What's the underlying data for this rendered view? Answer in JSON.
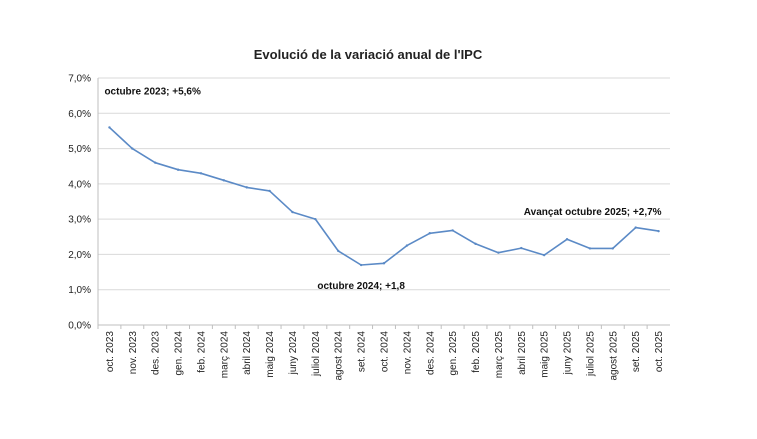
{
  "chart_data": {
    "type": "line",
    "title": "Evolució de la variació anual de l'IPC",
    "xlabel": "",
    "ylabel": "",
    "ylim": [
      0,
      7
    ],
    "grid": true,
    "line_color": "#5b8ac6",
    "grid_color": "#d9d9d9",
    "yticks": [
      "0,0%",
      "1,0%",
      "2,0%",
      "3,0%",
      "4,0%",
      "5,0%",
      "6,0%",
      "7,0%"
    ],
    "categories": [
      "oct. 2023",
      "nov. 2023",
      "des. 2023",
      "gen. 2024",
      "feb. 2024",
      "març 2024",
      "abril 2024",
      "maig 2024",
      "juny 2024",
      "juliol 2024",
      "agost 2024",
      "set. 2024",
      "oct. 2024",
      "nov. 2024",
      "des. 2024",
      "gen. 2025",
      "feb. 2025",
      "març 2025",
      "abril 2025",
      "maig 2025",
      "juny 2025",
      "juliol 2025",
      "agost 2025",
      "set. 2025",
      "oct. 2025"
    ],
    "values": [
      5.6,
      5.0,
      4.6,
      4.4,
      4.3,
      4.1,
      3.9,
      3.8,
      3.2,
      3.0,
      2.1,
      1.7,
      1.75,
      2.25,
      2.6,
      2.68,
      2.3,
      2.05,
      2.18,
      1.98,
      2.43,
      2.17,
      2.17,
      2.76,
      2.66
    ],
    "annotations": [
      {
        "index": 0,
        "text": "octubre 2023; +5,6%"
      },
      {
        "index": 11,
        "text": "octubre 2024;  +1,8"
      },
      {
        "index": 24,
        "text": "Avançat octubre 2025; +2,7%"
      }
    ]
  }
}
